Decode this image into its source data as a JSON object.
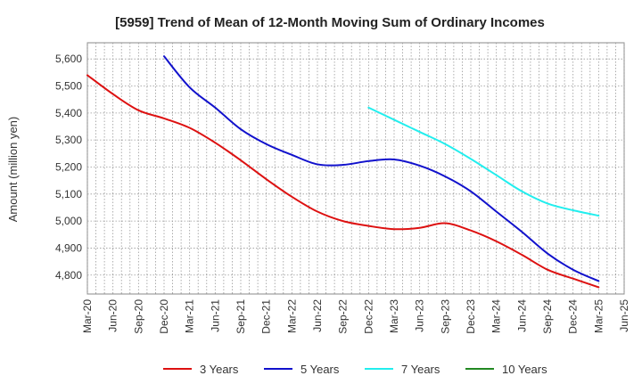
{
  "chart_data": {
    "type": "line",
    "title": "[5959]  Trend of Mean of 12-Month Moving Sum of Ordinary Incomes",
    "ylabel": "Amount (million yen)",
    "xlabel": "",
    "ylim": [
      4730,
      5660
    ],
    "yticks": [
      4800,
      4900,
      5000,
      5100,
      5200,
      5300,
      5400,
      5500,
      5600
    ],
    "ytick_labels": [
      "4,800",
      "4,900",
      "5,000",
      "5,100",
      "5,200",
      "5,300",
      "5,400",
      "5,500",
      "5,600"
    ],
    "x_categories": [
      "Mar-20",
      "Jun-20",
      "Sep-20",
      "Dec-20",
      "Mar-21",
      "Jun-21",
      "Sep-21",
      "Dec-21",
      "Mar-22",
      "Jun-22",
      "Sep-22",
      "Dec-22",
      "Mar-23",
      "Jun-23",
      "Sep-23",
      "Dec-23",
      "Mar-24",
      "Jun-24",
      "Sep-24",
      "Dec-24",
      "Mar-25",
      "Jun-25"
    ],
    "grid": true,
    "legend_position": "bottom",
    "series": [
      {
        "name": "3 Years",
        "color": "#dd1111",
        "values": [
          5540,
          5470,
          5410,
          5380,
          5345,
          5290,
          5225,
          5155,
          5090,
          5035,
          5000,
          4982,
          4970,
          4975,
          4992,
          4965,
          4925,
          4875,
          4820,
          4787,
          4755,
          null
        ]
      },
      {
        "name": "5 Years",
        "color": "#1111cc",
        "values": [
          null,
          null,
          null,
          5610,
          5495,
          5420,
          5340,
          5285,
          5245,
          5210,
          5208,
          5222,
          5228,
          5205,
          5165,
          5110,
          5035,
          4960,
          4880,
          4820,
          4778,
          null
        ]
      },
      {
        "name": "7 Years",
        "color": "#22eeee",
        "values": [
          null,
          null,
          null,
          null,
          null,
          null,
          null,
          null,
          null,
          null,
          null,
          5420,
          5375,
          5330,
          5285,
          5230,
          5170,
          5110,
          5065,
          5040,
          5020,
          null
        ]
      },
      {
        "name": "10 Years",
        "color": "#228822",
        "values": []
      }
    ]
  }
}
